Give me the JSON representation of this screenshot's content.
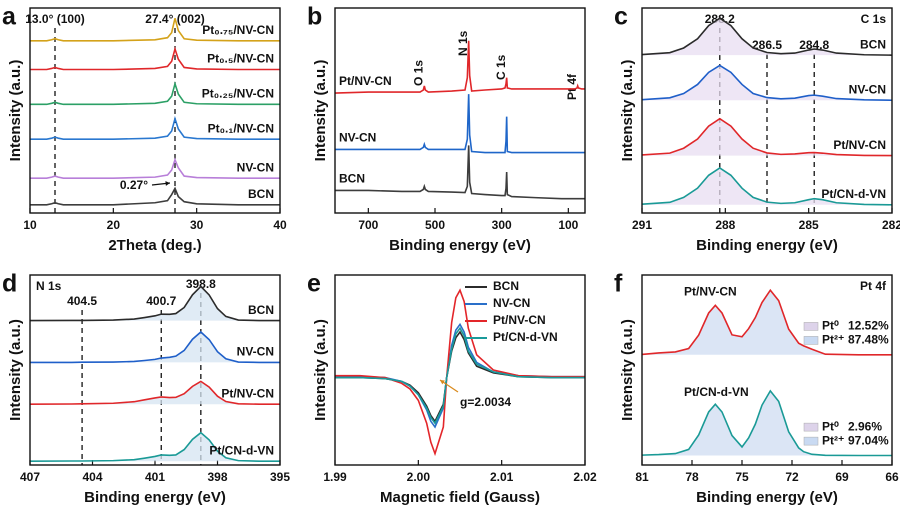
{
  "chart_data": [
    {
      "type": "line",
      "panel": "a",
      "xlabel": "2Theta (deg.)",
      "ylabel": "Intensity (a.u.)",
      "xlim": [
        10,
        40
      ],
      "xticks": [
        10,
        20,
        30,
        40
      ],
      "ylim": [
        0,
        100
      ],
      "labels": "right",
      "labels_colored": true,
      "vlines": [
        {
          "value": 13.0,
          "label": "13.0° (100)"
        },
        {
          "value": 27.4,
          "label": "27.4° (002)"
        }
      ],
      "annotations": [
        "0.27°"
      ],
      "x": [
        10,
        12,
        12.6,
        13,
        13.4,
        14,
        20,
        25,
        26.5,
        27,
        27.4,
        27.8,
        28.5,
        30,
        35,
        40
      ],
      "series": [
        {
          "name": "BCN",
          "color": "#3d3d3d",
          "values": [
            4,
            4,
            4.5,
            5,
            4.5,
            4,
            4,
            5,
            6,
            9,
            12,
            8,
            5.5,
            4.5,
            4,
            4
          ]
        },
        {
          "name": "NV-CN",
          "color": "#b87fd9",
          "values": [
            17,
            17,
            17.5,
            18,
            17.5,
            17,
            17,
            17.5,
            18.5,
            21,
            26,
            22,
            18,
            17.3,
            17,
            17
          ]
        },
        {
          "name": "Pt₀.₁/NV-CN",
          "color": "#2a78d0",
          "values": [
            36,
            36,
            36.5,
            37,
            36.5,
            36,
            36,
            36.5,
            37.5,
            40,
            46,
            41,
            37,
            36.3,
            36,
            36
          ]
        },
        {
          "name": "Pt₀.₂₅/NV-CN",
          "color": "#2ca066",
          "values": [
            53,
            53,
            53.5,
            54,
            53.5,
            53,
            53,
            53.5,
            54.5,
            57,
            63,
            58,
            54,
            53.3,
            53,
            53
          ]
        },
        {
          "name": "Pt₀.₅/NV-CN",
          "color": "#e0272a",
          "values": [
            70,
            70,
            70.5,
            71,
            70.5,
            70,
            70,
            70.5,
            71.5,
            74,
            80,
            75,
            71,
            70.3,
            70,
            70
          ]
        },
        {
          "name": "Pt₀.₇₅/NV-CN",
          "color": "#d4a21a",
          "values": [
            84,
            84,
            84.5,
            85,
            84.5,
            84,
            84,
            84.5,
            85.5,
            88,
            95,
            89,
            85,
            84.3,
            84,
            84
          ]
        }
      ]
    },
    {
      "type": "line",
      "panel": "b",
      "xlabel": "Binding energy (eV)",
      "ylabel": "Intensity (a.u.)",
      "xlim": [
        800,
        50
      ],
      "xticks": [
        700,
        500,
        300,
        100
      ],
      "ylim": [
        0,
        100
      ],
      "labels": "left",
      "labels_colored": true,
      "peak_labels": [
        {
          "value": 532,
          "label": "O 1s"
        },
        {
          "value": 399,
          "label": "N 1s"
        },
        {
          "value": 285,
          "label": "C 1s"
        },
        {
          "value": 72,
          "label": "Pt 4f"
        }
      ],
      "x": [
        800,
        700,
        600,
        545,
        535,
        532,
        529,
        520,
        450,
        410,
        403,
        399,
        396,
        390,
        350,
        300,
        290,
        287,
        285,
        283,
        270,
        200,
        120,
        80,
        74,
        72,
        70,
        60,
        50
      ],
      "series": [
        {
          "name": "Pt/NV-CN",
          "color": "#e0272a",
          "values": [
            58.5,
            59,
            59,
            59,
            60,
            62,
            60,
            59,
            59.5,
            60,
            66,
            84,
            67,
            59.5,
            60,
            60.5,
            61,
            63,
            66,
            61,
            60.5,
            60.5,
            60.5,
            60.5,
            61,
            62,
            61,
            60.5,
            60.5
          ]
        },
        {
          "name": "NV-CN",
          "color": "#1f66c9",
          "values": [
            31,
            31,
            31,
            31,
            32,
            33.5,
            32,
            31,
            31,
            31,
            36,
            58,
            38,
            30,
            29.5,
            29.5,
            29.5,
            35,
            47,
            30,
            29.5,
            29.5,
            29.5,
            29.5,
            29.5,
            29.5,
            29.5,
            29.5,
            29.5
          ]
        },
        {
          "name": "BCN",
          "color": "#3d3d3d",
          "values": [
            11,
            11,
            10.5,
            10.5,
            11.5,
            13,
            11.5,
            10.5,
            10.2,
            10,
            13,
            33,
            15,
            9.5,
            9,
            8.5,
            8.5,
            12,
            20,
            9,
            8,
            7.5,
            7,
            7,
            7,
            7,
            7,
            7,
            7
          ]
        }
      ]
    },
    {
      "type": "line",
      "panel": "c",
      "title": "C 1s",
      "title_corner": "upper right",
      "xlabel": "Binding energy (eV)",
      "ylabel": "Intensity (a.u.)",
      "xlim": [
        291,
        282
      ],
      "xticks": [
        291,
        288,
        285,
        282
      ],
      "ylim": [
        0,
        100
      ],
      "labels": "right",
      "fill": "#e8ddf1",
      "vlines": [
        {
          "value": 288.2,
          "label": "288.2"
        },
        {
          "value": 286.5,
          "label": "286.5"
        },
        {
          "value": 284.8,
          "label": "284.8"
        }
      ],
      "x": [
        291,
        290,
        289.5,
        289,
        288.6,
        288.2,
        287.8,
        287.4,
        287,
        286.5,
        286,
        285.5,
        285,
        284.8,
        284.5,
        284,
        283,
        282
      ],
      "series": [
        {
          "name": "BCN",
          "color": "#2b2b2b",
          "values": [
            77.3,
            78.2,
            80.5,
            85,
            91.4,
            95,
            91.4,
            85,
            80.5,
            78.3,
            77.7,
            78,
            79.5,
            80,
            79.5,
            78,
            77.2,
            77
          ]
        },
        {
          "name": "NV-CN",
          "color": "#1f5fc9",
          "values": [
            55.3,
            56.2,
            58.3,
            62.7,
            68.6,
            72,
            68.6,
            62.7,
            58.3,
            56.3,
            55.7,
            56,
            57.3,
            57.5,
            57,
            55.8,
            55.2,
            55
          ]
        },
        {
          "name": "Pt/NV-CN",
          "color": "#e0272a",
          "values": [
            28.3,
            29.2,
            31.6,
            36.1,
            42.4,
            46,
            42.4,
            36.1,
            31.6,
            29.3,
            28.6,
            28.8,
            29.4,
            29.5,
            29.2,
            28.5,
            28.1,
            28
          ]
        },
        {
          "name": "Pt/CN-d-VN",
          "color": "#1a9a96",
          "values": [
            4.3,
            5.2,
            7.6,
            12.1,
            18.4,
            22,
            18.4,
            12.1,
            7.6,
            5.3,
            4.7,
            5,
            6.5,
            7,
            6.5,
            5,
            4.2,
            4
          ]
        }
      ]
    },
    {
      "type": "line",
      "panel": "d",
      "title": "N 1s",
      "title_corner": "upper left",
      "xlabel": "Binding energy (eV)",
      "ylabel": "Intensity (a.u.)",
      "xlim": [
        407,
        395
      ],
      "xticks": [
        407,
        404,
        401,
        398,
        395
      ],
      "ylim": [
        0,
        100
      ],
      "labels": "right",
      "fill": "#d6e4f1",
      "vlines": [
        {
          "value": 404.5,
          "label": "404.5"
        },
        {
          "value": 400.7,
          "label": "400.7"
        },
        {
          "value": 398.8,
          "label": "398.8"
        }
      ],
      "x": [
        407,
        405,
        404.5,
        403,
        402,
        401.5,
        401,
        400.7,
        400.3,
        400,
        399.6,
        399.2,
        398.8,
        398.4,
        398,
        397.6,
        397,
        396,
        395
      ],
      "series": [
        {
          "name": "BCN",
          "color": "#2b2b2b",
          "values": [
            76,
            76.1,
            76.1,
            76.3,
            76.8,
            77.6,
            78.5,
            79.4,
            79.3,
            79.7,
            82.9,
            89.6,
            94,
            89.5,
            82.3,
            78.2,
            76.3,
            76,
            76
          ]
        },
        {
          "name": "NV-CN",
          "color": "#1f5fc9",
          "values": [
            54,
            54,
            54.1,
            54.2,
            54.5,
            55,
            55.6,
            56.3,
            56.7,
            57.3,
            60.3,
            66.2,
            70,
            66,
            59.6,
            55.9,
            54.2,
            54,
            54
          ]
        },
        {
          "name": "Pt/NV-CN",
          "color": "#e0272a",
          "values": [
            32,
            32.1,
            32.2,
            32.5,
            33.3,
            34.3,
            35.3,
            35.8,
            35.5,
            35.6,
            37.5,
            41.4,
            44,
            41,
            36.2,
            33.4,
            32.2,
            32,
            32
          ]
        },
        {
          "name": "Pt/CN-d-VN",
          "color": "#1a9a96",
          "values": [
            2,
            2.1,
            2.1,
            2.3,
            2.8,
            3.6,
            4.5,
            5.3,
            5.1,
            5.3,
            8.1,
            13.5,
            17,
            13.2,
            7.3,
            3.8,
            2.3,
            2,
            2
          ]
        }
      ]
    },
    {
      "type": "line",
      "panel": "e",
      "xlabel": "Magnetic field (Gauss)",
      "ylabel": "Intensity (a.u.)",
      "xlim": [
        1.99,
        2.02
      ],
      "xticks": [
        1.99,
        {
          "value": 2.0,
          "label": "2.00"
        },
        2.01,
        2.02
      ],
      "ylim": [
        0,
        100
      ],
      "legend": "upper right",
      "annotations": [
        "g=2.0034"
      ],
      "x": [
        1.99,
        1.993,
        1.996,
        1.998,
        1.999,
        2.0,
        2.001,
        2.0015,
        2.002,
        2.003,
        2.0034,
        2.004,
        2.0045,
        2.005,
        2.0055,
        2.006,
        2.007,
        2.009,
        2.012,
        2.016,
        2.02
      ],
      "series": [
        {
          "name": "BCN",
          "color": "#2b2b2b",
          "values": [
            46,
            46,
            45.5,
            44,
            42,
            38,
            31,
            26,
            23,
            32,
            46,
            60,
            67,
            70,
            66,
            59,
            52,
            48.5,
            46.5,
            46,
            46
          ]
        },
        {
          "name": "NV-CN",
          "color": "#2a6fc9",
          "values": [
            46.5,
            46.5,
            46,
            44,
            41.5,
            37,
            29,
            23,
            20,
            30,
            46,
            63,
            71,
            74,
            70,
            62,
            54,
            49,
            47,
            46.5,
            46.5
          ]
        },
        {
          "name": "Pt/NV-CN",
          "color": "#e3262a",
          "values": [
            47,
            47,
            46,
            43,
            40,
            34,
            22,
            12,
            6,
            20,
            46,
            75,
            88,
            92,
            86,
            72,
            58,
            50,
            47,
            46.5,
            46.5
          ]
        },
        {
          "name": "Pt/CN-d-VN",
          "color": "#1a9a9a",
          "values": [
            46,
            46,
            45.5,
            44,
            41.5,
            37,
            30,
            25,
            22,
            31,
            46,
            61,
            69,
            72,
            68,
            60,
            53,
            49,
            46.5,
            46,
            46
          ]
        }
      ]
    },
    {
      "type": "line",
      "panel": "f",
      "title": "Pt 4f",
      "title_corner": "upper right",
      "xlabel": "Binding energy (eV)",
      "ylabel": "Intensity (a.u.)",
      "xlim": [
        81,
        66
      ],
      "xticks": [
        81,
        78,
        75,
        72,
        69,
        66
      ],
      "ylim": [
        0,
        100
      ],
      "labels": "upper-left",
      "fill": "#cfdcf2",
      "components": [
        [
          [
            "Pt⁰",
            "12.52%"
          ],
          [
            "Pt²⁺",
            "87.48%"
          ]
        ],
        [
          [
            "Pt⁰",
            "2.96%"
          ],
          [
            "Pt²⁺",
            "97.04%"
          ]
        ]
      ],
      "component_colors": [
        "#ddd3ea",
        "#c9daf2"
      ],
      "x": [
        81,
        80,
        79,
        78.2,
        77.6,
        77,
        76.6,
        76.2,
        75.6,
        75,
        74.6,
        74.2,
        73.8,
        73.3,
        72.8,
        72.2,
        71.6,
        71.3,
        70.8,
        70,
        68,
        66
      ],
      "series": [
        {
          "name": "Pt/NV-CN",
          "color": "#e0272a",
          "values": [
            58.2,
            59,
            59.5,
            61.3,
            68.4,
            80,
            84,
            80,
            68.5,
            67.5,
            71.8,
            77.6,
            85.5,
            92,
            86.5,
            71.5,
            64.1,
            62.7,
            60.9,
            58.3,
            58,
            58
          ]
        },
        {
          "name": "Pt/CN-d-VN",
          "color": "#1a9a96",
          "values": [
            5.2,
            5.5,
            6,
            8.2,
            15.8,
            27.9,
            32,
            27.9,
            15.5,
            9.5,
            14.3,
            21.5,
            31.5,
            39,
            33.5,
            17.5,
            9,
            7,
            5.6,
            5.1,
            5,
            5
          ]
        }
      ]
    }
  ]
}
